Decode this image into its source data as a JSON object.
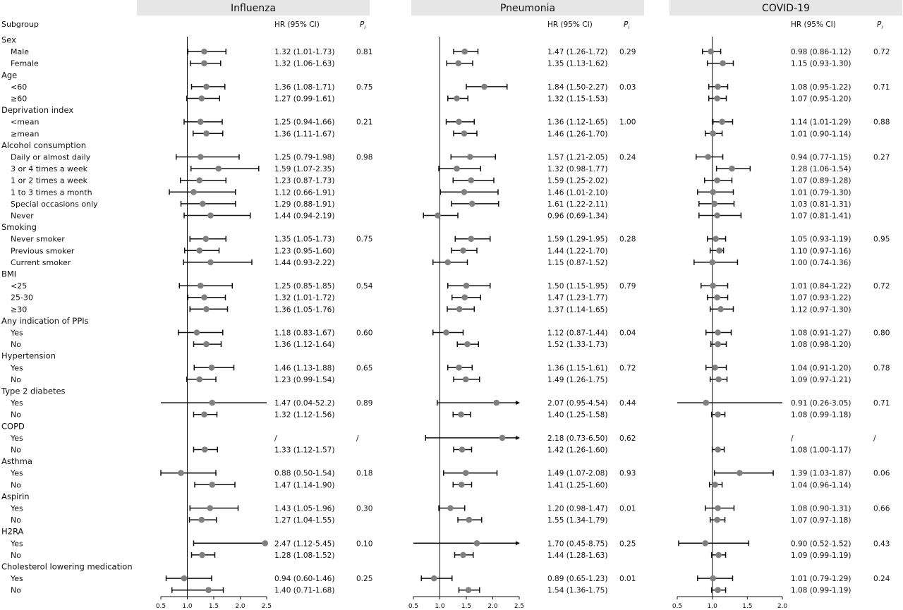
{
  "chart_data": {
    "type": "forest",
    "header": {
      "subgroup": "Subgroup",
      "hr": "HR (95% CI)",
      "p": "P",
      "p_sub": "i"
    },
    "panels": [
      {
        "title": "Influenza",
        "xlim": [
          0.5,
          2.5
        ],
        "ticks": [
          "0.5",
          "1.0",
          "1.5",
          "2.0",
          "2.5"
        ],
        "ref": 1.0
      },
      {
        "title": "Pneumonia",
        "xlim": [
          0.5,
          2.5
        ],
        "ticks": [
          "0.5",
          "1.0",
          "1.5",
          "2.0",
          "2.5"
        ],
        "ref": 1.0
      },
      {
        "title": "COVID-19",
        "xlim": [
          0.5,
          2.0
        ],
        "ticks": [
          "0.5",
          "1.0",
          "1.5",
          "2.0"
        ],
        "ref": 1.0
      }
    ],
    "rows": [
      {
        "kind": "group",
        "label": "Sex"
      },
      {
        "kind": "sub",
        "label": "Male",
        "p": [
          0.81,
          0.29,
          0.72
        ],
        "v": [
          [
            1.32,
            1.01,
            1.73,
            "1.32 (1.01-1.73)"
          ],
          [
            1.47,
            1.26,
            1.72,
            "1.47 (1.26-1.72)"
          ],
          [
            0.98,
            0.86,
            1.12,
            "0.98 (0.86-1.12)"
          ]
        ]
      },
      {
        "kind": "sub",
        "label": "Female",
        "v": [
          [
            1.32,
            1.06,
            1.63,
            "1.32 (1.06-1.63)"
          ],
          [
            1.35,
            1.13,
            1.62,
            "1.35 (1.13-1.62)"
          ],
          [
            1.15,
            0.93,
            1.3,
            "1.15 (0.93-1.30)"
          ]
        ]
      },
      {
        "kind": "group",
        "label": "Age"
      },
      {
        "kind": "sub",
        "label": "<60",
        "p": [
          0.75,
          0.03,
          0.71
        ],
        "v": [
          [
            1.36,
            1.08,
            1.71,
            "1.36 (1.08-1.71)"
          ],
          [
            1.84,
            1.5,
            2.27,
            "1.84 (1.50-2.27)"
          ],
          [
            1.08,
            0.95,
            1.22,
            "1.08 (0.95-1.22)"
          ]
        ]
      },
      {
        "kind": "sub",
        "label": "≥60",
        "v": [
          [
            1.27,
            0.99,
            1.61,
            "1.27 (0.99-1.61)"
          ],
          [
            1.32,
            1.15,
            1.53,
            "1.32 (1.15-1.53)"
          ],
          [
            1.07,
            0.95,
            1.2,
            "1.07 (0.95-1.20)"
          ]
        ]
      },
      {
        "kind": "group",
        "label": "Deprivation index"
      },
      {
        "kind": "sub",
        "label": "<mean",
        "p": [
          0.21,
          "1.00",
          0.88
        ],
        "v": [
          [
            1.25,
            0.94,
            1.66,
            "1.25 (0.94-1.66)"
          ],
          [
            1.36,
            1.12,
            1.65,
            "1.36 (1.12-1.65)"
          ],
          [
            1.14,
            1.01,
            1.29,
            "1.14 (1.01-1.29)"
          ]
        ]
      },
      {
        "kind": "sub",
        "label": "≥mean",
        "v": [
          [
            1.36,
            1.11,
            1.67,
            "1.36 (1.11-1.67)"
          ],
          [
            1.46,
            1.26,
            1.7,
            "1.46 (1.26-1.70)"
          ],
          [
            1.01,
            0.9,
            1.14,
            "1.01 (0.90-1.14)"
          ]
        ]
      },
      {
        "kind": "group",
        "label": "Alcohol consumption"
      },
      {
        "kind": "sub",
        "label": "Daily or almost daily",
        "p": [
          0.98,
          0.24,
          0.27
        ],
        "v": [
          [
            1.25,
            0.79,
            1.98,
            "1.25 (0.79-1.98)"
          ],
          [
            1.57,
            1.21,
            2.05,
            "1.57 (1.21-2.05)"
          ],
          [
            0.94,
            0.77,
            1.15,
            "0.94 (0.77-1.15)"
          ]
        ]
      },
      {
        "kind": "sub",
        "label": "3 or 4 times a week",
        "v": [
          [
            1.59,
            1.07,
            2.35,
            "1.59 (1.07-2.35)"
          ],
          [
            1.32,
            0.98,
            1.77,
            "1.32 (0.98-1.77)"
          ],
          [
            1.28,
            1.06,
            1.54,
            "1.28 (1.06-1.54)"
          ]
        ]
      },
      {
        "kind": "sub",
        "label": "1 or 2 times a week",
        "v": [
          [
            1.23,
            0.87,
            1.73,
            "1.23 (0.87-1.73)"
          ],
          [
            1.59,
            1.25,
            2.02,
            "1.59 (1.25-2.02)"
          ],
          [
            1.07,
            0.89,
            1.28,
            "1.07 (0.89-1.28)"
          ]
        ]
      },
      {
        "kind": "sub",
        "label": "1 to 3 times a month",
        "v": [
          [
            1.12,
            0.66,
            1.91,
            "1.12 (0.66-1.91)"
          ],
          [
            1.46,
            1.01,
            2.1,
            "1.46 (1.01-2.10)"
          ],
          [
            1.01,
            0.79,
            1.3,
            "1.01 (0.79-1.30)"
          ]
        ]
      },
      {
        "kind": "sub",
        "label": "Special occasions only",
        "v": [
          [
            1.29,
            0.88,
            1.91,
            "1.29 (0.88-1.91)"
          ],
          [
            1.61,
            1.22,
            2.11,
            "1.61 (1.22-2.11)"
          ],
          [
            1.03,
            0.81,
            1.31,
            "1.03 (0.81-1.31)"
          ]
        ]
      },
      {
        "kind": "sub",
        "label": "Never",
        "v": [
          [
            1.44,
            0.94,
            2.19,
            "1.44 (0.94-2.19)"
          ],
          [
            0.96,
            0.69,
            1.34,
            "0.96 (0.69-1.34)"
          ],
          [
            1.07,
            0.81,
            1.41,
            "1.07 (0.81-1.41)"
          ]
        ]
      },
      {
        "kind": "group",
        "label": "Smoking"
      },
      {
        "kind": "sub",
        "label": "Never smoker",
        "p": [
          0.75,
          0.28,
          0.95
        ],
        "v": [
          [
            1.35,
            1.05,
            1.73,
            "1.35 (1.05-1.73)"
          ],
          [
            1.59,
            1.29,
            1.95,
            "1.59 (1.29-1.95)"
          ],
          [
            1.05,
            0.93,
            1.19,
            "1.05 (0.93-1.19)"
          ]
        ]
      },
      {
        "kind": "sub",
        "label": "Previous smoker",
        "v": [
          [
            1.23,
            0.95,
            1.6,
            "1.23 (0.95-1.60)"
          ],
          [
            1.44,
            1.22,
            1.7,
            "1.44 (1.22-1.70)"
          ],
          [
            1.1,
            0.97,
            1.16,
            "1.10 (0.97-1.16)"
          ]
        ]
      },
      {
        "kind": "sub",
        "label": "Current smoker",
        "v": [
          [
            1.44,
            0.93,
            2.22,
            "1.44 (0.93-2.22)"
          ],
          [
            1.15,
            0.87,
            1.52,
            "1.15 (0.87-1.52)"
          ],
          [
            1.0,
            0.74,
            1.36,
            "1.00 (0.74-1.36)"
          ]
        ]
      },
      {
        "kind": "group",
        "label": "BMI"
      },
      {
        "kind": "sub",
        "label": "<25",
        "p": [
          0.54,
          0.79,
          0.72
        ],
        "v": [
          [
            1.25,
            0.85,
            1.85,
            "1.25 (0.85-1.85)"
          ],
          [
            1.5,
            1.15,
            1.95,
            "1.50 (1.15-1.95)"
          ],
          [
            1.01,
            0.84,
            1.22,
            "1.01 (0.84-1.22)"
          ]
        ]
      },
      {
        "kind": "sub",
        "label": "25-30",
        "v": [
          [
            1.32,
            1.01,
            1.72,
            "1.32 (1.01-1.72)"
          ],
          [
            1.47,
            1.23,
            1.77,
            "1.47 (1.23-1.77)"
          ],
          [
            1.07,
            0.93,
            1.22,
            "1.07 (0.93-1.22)"
          ]
        ]
      },
      {
        "kind": "sub",
        "label": "≥30",
        "v": [
          [
            1.36,
            1.05,
            1.76,
            "1.36 (1.05-1.76)"
          ],
          [
            1.37,
            1.14,
            1.65,
            "1.37 (1.14-1.65)"
          ],
          [
            1.12,
            0.97,
            1.3,
            "1.12 (0.97-1.30)"
          ]
        ]
      },
      {
        "kind": "group",
        "label": "Any indication of PPIs"
      },
      {
        "kind": "sub",
        "label": "Yes",
        "p": [
          "0.60",
          0.04,
          "0.80"
        ],
        "v": [
          [
            1.18,
            0.83,
            1.67,
            "1.18 (0.83-1.67)"
          ],
          [
            1.12,
            0.87,
            1.44,
            "1.12 (0.87-1.44)"
          ],
          [
            1.08,
            0.91,
            1.27,
            "1.08 (0.91-1.27)"
          ]
        ]
      },
      {
        "kind": "sub",
        "label": "No",
        "v": [
          [
            1.36,
            1.12,
            1.64,
            "1.36 (1.12-1.64)"
          ],
          [
            1.52,
            1.33,
            1.73,
            "1.52 (1.33-1.73)"
          ],
          [
            1.08,
            0.98,
            1.2,
            "1.08 (0.98-1.20)"
          ]
        ]
      },
      {
        "kind": "group",
        "label": "Hypertension"
      },
      {
        "kind": "sub",
        "label": "Yes",
        "p": [
          0.65,
          0.72,
          0.78
        ],
        "v": [
          [
            1.46,
            1.13,
            1.88,
            "1.46 (1.13-1.88)"
          ],
          [
            1.36,
            1.15,
            1.61,
            "1.36 (1.15-1.61)"
          ],
          [
            1.04,
            0.91,
            1.2,
            "1.04 (0.91-1.20)"
          ]
        ]
      },
      {
        "kind": "sub",
        "label": "No",
        "v": [
          [
            1.23,
            0.99,
            1.54,
            "1.23 (0.99-1.54)"
          ],
          [
            1.49,
            1.26,
            1.75,
            "1.49 (1.26-1.75)"
          ],
          [
            1.09,
            0.97,
            1.21,
            "1.09 (0.97-1.21)"
          ]
        ]
      },
      {
        "kind": "group",
        "label": "Type 2 diabetes"
      },
      {
        "kind": "sub",
        "label": "Yes",
        "p": [
          0.89,
          0.44,
          0.71
        ],
        "v": [
          [
            1.47,
            0.04,
            52.2,
            "1.47 (0.04-52.2)"
          ],
          [
            2.07,
            0.95,
            4.54,
            "2.07 (0.95-4.54)"
          ],
          [
            0.91,
            0.26,
            3.05,
            "0.91 (0.26-3.05)"
          ]
        ]
      },
      {
        "kind": "sub",
        "label": "No",
        "v": [
          [
            1.32,
            1.12,
            1.56,
            "1.32 (1.12-1.56)"
          ],
          [
            1.4,
            1.25,
            1.58,
            "1.40 (1.25-1.58)"
          ],
          [
            1.08,
            0.99,
            1.18,
            "1.08 (0.99-1.18)"
          ]
        ]
      },
      {
        "kind": "group",
        "label": "COPD"
      },
      {
        "kind": "sub",
        "label": "Yes",
        "p": [
          "/",
          0.62,
          "/"
        ],
        "v": [
          [
            null,
            null,
            null,
            "/"
          ],
          [
            2.18,
            0.73,
            6.5,
            "2.18 (0.73-6.50)"
          ],
          [
            null,
            null,
            null,
            "/"
          ]
        ]
      },
      {
        "kind": "sub",
        "label": "No",
        "v": [
          [
            1.33,
            1.12,
            1.57,
            "1.33 (1.12-1.57)"
          ],
          [
            1.42,
            1.26,
            1.6,
            "1.42 (1.26-1.60)"
          ],
          [
            1.08,
            1.0,
            1.17,
            "1.08 (1.00-1.17)"
          ]
        ]
      },
      {
        "kind": "group",
        "label": "Asthma"
      },
      {
        "kind": "sub",
        "label": "Yes",
        "p": [
          0.18,
          0.93,
          0.06
        ],
        "v": [
          [
            0.88,
            0.5,
            1.54,
            "0.88 (0.50-1.54)"
          ],
          [
            1.49,
            1.07,
            2.08,
            "1.49 (1.07-2.08)"
          ],
          [
            1.39,
            1.03,
            1.87,
            "1.39 (1.03-1.87)"
          ]
        ]
      },
      {
        "kind": "sub",
        "label": "No",
        "v": [
          [
            1.47,
            1.14,
            1.9,
            "1.47 (1.14-1.90)"
          ],
          [
            1.41,
            1.25,
            1.6,
            "1.41 (1.25-1.60)"
          ],
          [
            1.04,
            0.96,
            1.14,
            "1.04 (0.96-1.14)"
          ]
        ]
      },
      {
        "kind": "group",
        "label": "Aspirin"
      },
      {
        "kind": "sub",
        "label": "Yes",
        "p": [
          "0.30",
          0.01,
          0.66
        ],
        "v": [
          [
            1.43,
            1.05,
            1.96,
            "1.43 (1.05-1.96)"
          ],
          [
            1.2,
            0.98,
            1.47,
            "1.20 (0.98-1.47)"
          ],
          [
            1.08,
            0.9,
            1.31,
            "1.08 (0.90-1.31)"
          ]
        ]
      },
      {
        "kind": "sub",
        "label": "No",
        "v": [
          [
            1.27,
            1.04,
            1.55,
            "1.27 (1.04-1.55)"
          ],
          [
            1.55,
            1.34,
            1.79,
            "1.55 (1.34-1.79)"
          ],
          [
            1.07,
            0.97,
            1.18,
            "1.07 (0.97-1.18)"
          ]
        ]
      },
      {
        "kind": "group",
        "label": "H2RA"
      },
      {
        "kind": "sub",
        "label": "Yes",
        "p": [
          "0.10",
          0.25,
          0.43
        ],
        "v": [
          [
            2.47,
            1.12,
            5.45,
            "2.47 (1.12-5.45)"
          ],
          [
            1.7,
            0.45,
            8.75,
            "1.70 (0.45-8.75)"
          ],
          [
            0.9,
            0.52,
            1.52,
            "0.90 (0.52-1.52)"
          ]
        ]
      },
      {
        "kind": "sub",
        "label": "No",
        "v": [
          [
            1.28,
            1.08,
            1.52,
            "1.28 (1.08-1.52)"
          ],
          [
            1.44,
            1.28,
            1.63,
            "1.44 (1.28-1.63)"
          ],
          [
            1.09,
            0.99,
            1.19,
            "1.09 (0.99-1.19)"
          ]
        ]
      },
      {
        "kind": "group",
        "label": "Cholesterol lowering medication"
      },
      {
        "kind": "sub",
        "label": "Yes",
        "p": [
          0.25,
          0.01,
          0.24
        ],
        "v": [
          [
            0.94,
            0.6,
            1.46,
            "0.94 (0.60-1.46)"
          ],
          [
            0.89,
            0.65,
            1.23,
            "0.89 (0.65-1.23)"
          ],
          [
            1.01,
            0.79,
            1.29,
            "1.01 (0.79-1.29)"
          ]
        ]
      },
      {
        "kind": "sub",
        "label": "No",
        "v": [
          [
            1.4,
            0.71,
            1.68,
            "1.40 (0.71-1.68)"
          ],
          [
            1.54,
            1.36,
            1.75,
            "1.54 (1.36-1.75)"
          ],
          [
            1.08,
            0.99,
            1.19,
            "1.08 (0.99-1.19)"
          ]
        ]
      }
    ],
    "colors": {
      "point": "#808080",
      "line": "#111111",
      "header_bg": "#e6e6e6"
    }
  }
}
